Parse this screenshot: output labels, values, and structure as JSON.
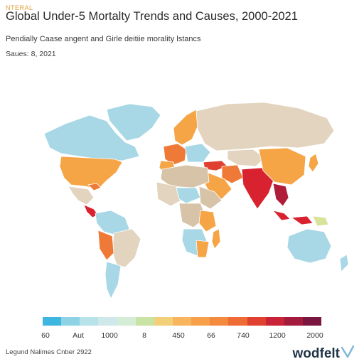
{
  "header": {
    "tag": "NTERAL",
    "title": "Global Under-5 Mortalty Trends and Causes, 2000-2021",
    "subtitle": "Pendially Caase angent and Girle deitiie morality lstancs",
    "source": "Saues: 8, 2021"
  },
  "legend": {
    "colors": [
      "#3fb6e0",
      "#8ed2e6",
      "#b7e2ea",
      "#cfe8ea",
      "#d5ecd7",
      "#c8e3a4",
      "#f2d07a",
      "#f8b55e",
      "#f7a049",
      "#f48a3d",
      "#ee6b35",
      "#e0402f",
      "#c82336",
      "#a31a3d",
      "#7a1540"
    ],
    "labels": [
      "60",
      "Aut",
      "1000",
      "8",
      "450",
      "66",
      "740",
      "1200",
      "2000"
    ]
  },
  "regions": {
    "palette": {
      "ocean": "#ffffff",
      "light_blue": "#a8d8e6",
      "tan": "#e3d4bf",
      "beige": "#d7c4a8",
      "orange": "#f5a546",
      "deep_orange": "#ef7a37",
      "red": "#d9222f",
      "dark_red": "#b01d38",
      "yellow_green": "#d8e39a",
      "border": "#ffffff"
    }
  },
  "footer": {
    "note": "Legund Nalimes Cnber 2922",
    "brand": "wodfelt",
    "brand_icon": "arrow-checkmark-icon"
  }
}
